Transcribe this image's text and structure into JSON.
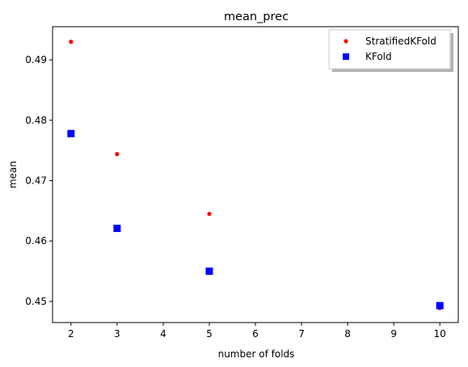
{
  "chart_data": {
    "type": "scatter",
    "title": "mean_prec",
    "xlabel": "number of folds",
    "ylabel": "mean",
    "xlim": [
      1.6,
      10.4
    ],
    "ylim": [
      0.4465,
      0.4955
    ],
    "xticks": [
      2,
      3,
      4,
      5,
      6,
      7,
      8,
      9,
      10
    ],
    "yticks": [
      0.45,
      0.46,
      0.47,
      0.48,
      0.49
    ],
    "ytick_labels": [
      "0.45",
      "0.46",
      "0.47",
      "0.48",
      "0.49"
    ],
    "grid": false,
    "legend_position": "top-right",
    "series": [
      {
        "name": "StratifiedKFold",
        "marker": "circle",
        "color": "#ff0000",
        "x": [
          2,
          3,
          5,
          10
        ],
        "y": [
          0.493,
          0.4744,
          0.4645,
          0.4489
        ]
      },
      {
        "name": "KFold",
        "marker": "square",
        "color": "#0000ff",
        "x": [
          2,
          3,
          5,
          10
        ],
        "y": [
          0.4778,
          0.4621,
          0.455,
          0.4493
        ]
      }
    ]
  }
}
